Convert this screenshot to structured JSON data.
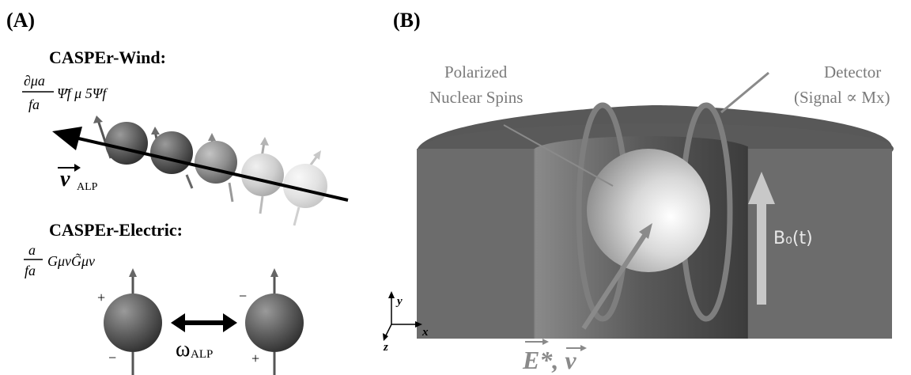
{
  "panel_a": {
    "label": "(A)",
    "wind": {
      "title": "CASPEr-Wind:",
      "formula_num": "∂μa",
      "formula_den": "fa",
      "formula_rest": "Ψ̄f  μ  5Ψf",
      "velocity_symbol": "v",
      "velocity_sub": "ALP"
    },
    "electric": {
      "title": "CASPEr-Electric:",
      "formula_num": "a",
      "formula_den": "fa",
      "formula_rest": "GμνG̃μν",
      "omega_symbol": "ω",
      "omega_sub": "ALP",
      "left_signs": {
        "top": "+",
        "bottom": "−"
      },
      "right_signs": {
        "top": "−",
        "bottom": "+"
      }
    }
  },
  "panel_b": {
    "label": "(B)",
    "polarized_label_line1": "Polarized",
    "polarized_label_line2": "Nuclear Spins",
    "detector_line1": "Detector",
    "detector_line2": "(Signal ∝ Mx)",
    "field_label": "B₀(t)",
    "ev_label": "E*, v",
    "axes": {
      "y": "y",
      "x": "x",
      "z": "z"
    }
  },
  "colors": {
    "block_front": "#6b6b6b",
    "block_top": "#555555",
    "block_inner": "#4a4a4a",
    "coil": "#808080",
    "arrow_light": "#c8c8c8",
    "text_gray": "#8a8a8a"
  }
}
